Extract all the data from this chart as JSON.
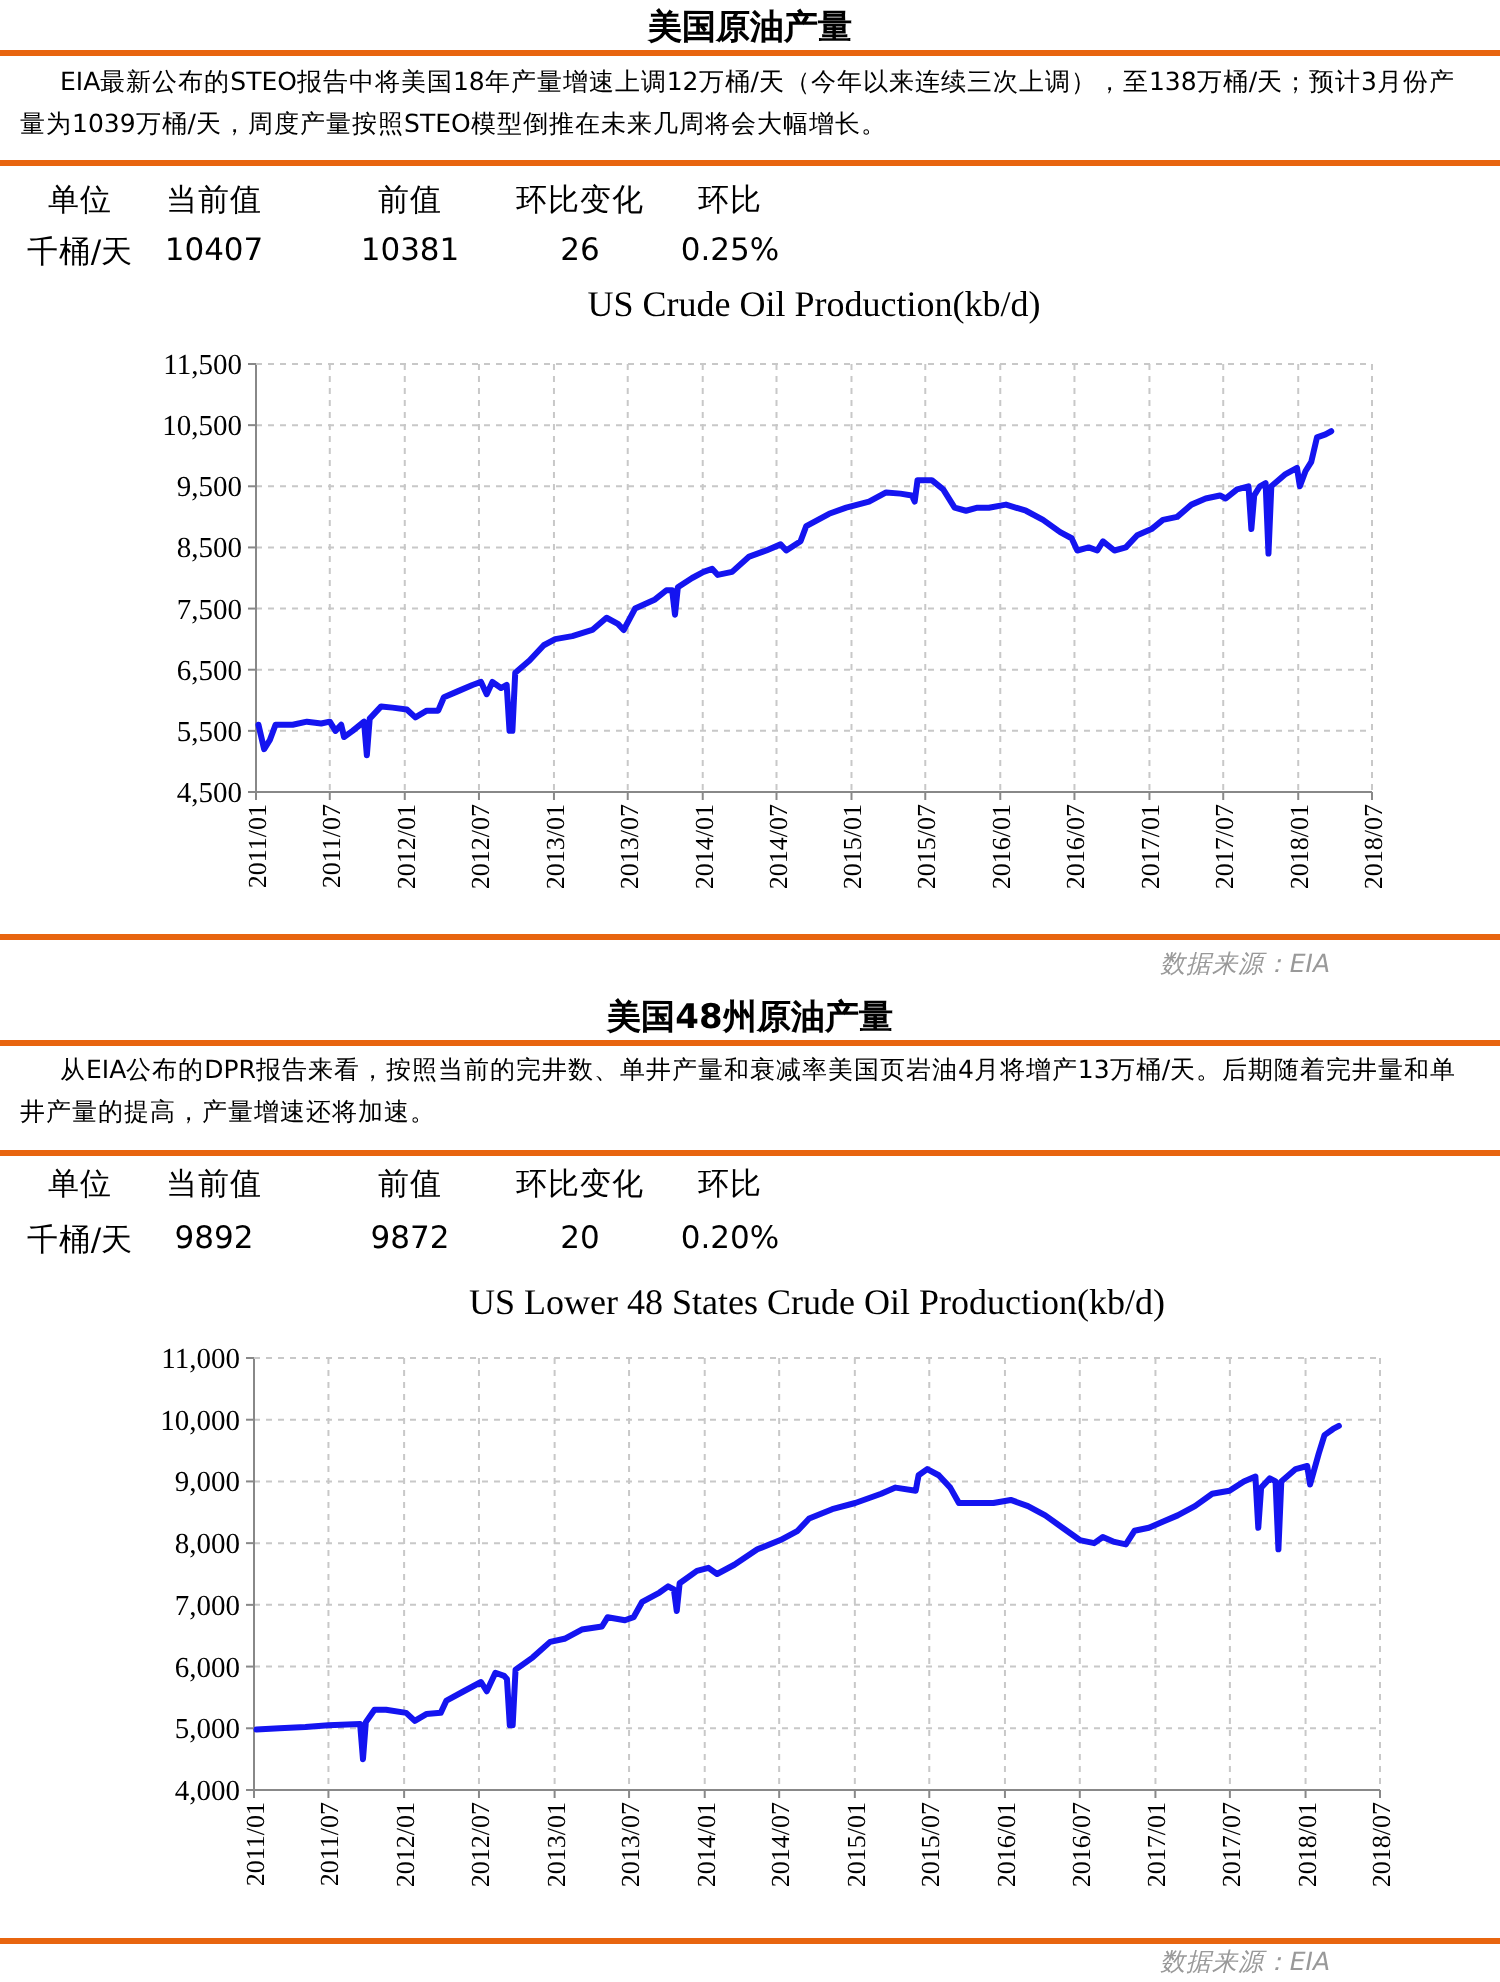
{
  "chart_data": [
    {
      "type": "line",
      "title": "US Crude Oil Production(kb/d)",
      "annotations": [
        "美国原油产量",
        "EIA最新公布的STEO报告中将美国18年产量增速上调12万桶/天（今年以来连续三次上调），至138万桶/天；预计3月份产量为1039万桶/天，周度产量按照STEO模型倒推在未来几周将会大幅增长。",
        "单位",
        "当前值",
        "前值",
        "环比变化",
        "环比",
        "千桶/天",
        "10407",
        "10381",
        "26",
        "0.25%",
        "数据来源：EIA"
      ],
      "x": [
        "2011-01-07",
        "2011-01-21",
        "2011-02-04",
        "2011-02-18",
        "2011-04-01",
        "2011-05-06",
        "2011-06-10",
        "2011-07-01",
        "2011-07-15",
        "2011-07-29",
        "2011-08-05",
        "2011-08-26",
        "2011-09-23",
        "2011-09-30",
        "2011-10-07",
        "2011-11-04",
        "2011-12-02",
        "2012-01-06",
        "2012-01-27",
        "2012-02-24",
        "2012-03-23",
        "2012-04-06",
        "2012-05-11",
        "2012-06-15",
        "2012-07-06",
        "2012-07-20",
        "2012-08-03",
        "2012-08-24",
        "2012-09-07",
        "2012-09-14",
        "2012-09-21",
        "2012-09-28",
        "2012-11-02",
        "2012-12-07",
        "2013-01-04",
        "2013-02-15",
        "2013-04-05",
        "2013-05-10",
        "2013-06-07",
        "2013-06-21",
        "2013-07-19",
        "2013-09-06",
        "2013-10-04",
        "2013-10-18",
        "2013-10-25",
        "2013-11-01",
        "2013-12-06",
        "2014-01-03",
        "2014-01-24",
        "2014-02-07",
        "2014-03-14",
        "2014-04-25",
        "2014-06-06",
        "2014-07-11",
        "2014-07-25",
        "2014-08-29",
        "2014-09-12",
        "2014-11-07",
        "2014-12-19",
        "2015-02-13",
        "2015-03-27",
        "2015-05-01",
        "2015-05-29",
        "2015-06-05",
        "2015-06-12",
        "2015-07-17",
        "2015-08-14",
        "2015-09-11",
        "2015-10-09",
        "2015-11-06",
        "2015-12-04",
        "2016-01-15",
        "2016-03-04",
        "2016-04-15",
        "2016-05-27",
        "2016-06-24",
        "2016-07-08",
        "2016-08-05",
        "2016-08-26",
        "2016-09-09",
        "2016-10-07",
        "2016-11-04",
        "2016-12-02",
        "2017-01-06",
        "2017-02-03",
        "2017-03-10",
        "2017-04-14",
        "2017-05-19",
        "2017-06-23",
        "2017-07-07",
        "2017-08-04",
        "2017-09-01",
        "2017-09-08",
        "2017-09-15",
        "2017-09-29",
        "2017-10-13",
        "2017-10-20",
        "2017-10-27",
        "2017-12-01",
        "2017-12-29",
        "2018-01-05",
        "2018-01-19",
        "2018-02-02",
        "2018-02-16",
        "2018-03-09",
        "2018-03-23"
      ],
      "series": [
        {
          "color": "#1414f0",
          "values": [
            5600,
            5200,
            5350,
            5600,
            5600,
            5650,
            5620,
            5650,
            5500,
            5600,
            5400,
            5500,
            5650,
            5100,
            5700,
            5900,
            5880,
            5850,
            5720,
            5830,
            5830,
            6050,
            6150,
            6250,
            6300,
            6100,
            6300,
            6200,
            6250,
            5500,
            5500,
            6450,
            6650,
            6900,
            7000,
            7050,
            7150,
            7350,
            7250,
            7150,
            7500,
            7650,
            7800,
            7800,
            7400,
            7850,
            8000,
            8100,
            8150,
            8050,
            8100,
            8350,
            8450,
            8550,
            8450,
            8600,
            8850,
            9050,
            9150,
            9250,
            9400,
            9380,
            9350,
            9250,
            9600,
            9600,
            9450,
            9150,
            9100,
            9150,
            9150,
            9200,
            9100,
            8950,
            8750,
            8650,
            8450,
            8500,
            8450,
            8600,
            8450,
            8500,
            8700,
            8800,
            8950,
            9000,
            9200,
            9300,
            9350,
            9300,
            9450,
            9500,
            8800,
            9350,
            9500,
            9550,
            8400,
            9500,
            9700,
            9800,
            9500,
            9750,
            9900,
            10300,
            10350,
            10400
          ]
        }
      ],
      "xlim": [
        "2011-01-01",
        "2018-07-01"
      ],
      "xticks": [
        {
          "value": "2011-01-01",
          "label": "2011/01"
        },
        {
          "value": "2011-07-01",
          "label": "2011/07"
        },
        {
          "value": "2012-01-01",
          "label": "2012/01"
        },
        {
          "value": "2012-07-01",
          "label": "2012/07"
        },
        {
          "value": "2013-01-01",
          "label": "2013/01"
        },
        {
          "value": "2013-07-01",
          "label": "2013/07"
        },
        {
          "value": "2014-01-01",
          "label": "2014/01"
        },
        {
          "value": "2014-07-01",
          "label": "2014/07"
        },
        {
          "value": "2015-01-01",
          "label": "2015/01"
        },
        {
          "value": "2015-07-01",
          "label": "2015/07"
        },
        {
          "value": "2016-01-01",
          "label": "2016/01"
        },
        {
          "value": "2016-07-01",
          "label": "2016/07"
        },
        {
          "value": "2017-01-01",
          "label": "2017/01"
        },
        {
          "value": "2017-07-01",
          "label": "2017/07"
        },
        {
          "value": "2018-01-01",
          "label": "2018/01"
        },
        {
          "value": "2018-07-01",
          "label": "2018/07"
        }
      ],
      "ylim": [
        4500,
        11500
      ],
      "yticks": [
        {
          "value": 4500,
          "label": "4,500"
        },
        {
          "value": 5500,
          "label": "5,500"
        },
        {
          "value": 6500,
          "label": "6,500"
        },
        {
          "value": 7500,
          "label": "7,500"
        },
        {
          "value": 8500,
          "label": "8,500"
        },
        {
          "value": 9500,
          "label": "9,500"
        },
        {
          "value": 10500,
          "label": "10,500"
        },
        {
          "value": 11500,
          "label": "11,500"
        }
      ],
      "grid": true
    },
    {
      "type": "line",
      "title": "US Lower 48 States Crude Oil Production(kb/d)",
      "annotations": [
        "美国48州原油产量",
        "从EIA公布的DPR报告来看，按照当前的完井数、单井产量和衰减率美国页岩油4月将增产13万桶/天。后期随着完井量和单井产量的提高，产量增速还将加速。",
        "单位",
        "当前值",
        "前值",
        "环比变化",
        "环比",
        "千桶/天",
        "9892",
        "9872",
        "20",
        "0.20%",
        "数据来源：EIA"
      ],
      "x": [
        "2011-01-07",
        "2011-03-04",
        "2011-05-06",
        "2011-07-01",
        "2011-09-16",
        "2011-09-23",
        "2011-09-30",
        "2011-10-21",
        "2011-11-18",
        "2012-01-06",
        "2012-01-27",
        "2012-02-24",
        "2012-03-30",
        "2012-04-13",
        "2012-05-25",
        "2012-07-06",
        "2012-07-20",
        "2012-08-10",
        "2012-08-31",
        "2012-09-07",
        "2012-09-14",
        "2012-09-21",
        "2012-09-28",
        "2012-11-09",
        "2012-12-21",
        "2013-01-25",
        "2013-03-08",
        "2013-04-26",
        "2013-05-10",
        "2013-06-21",
        "2013-07-12",
        "2013-08-02",
        "2013-09-13",
        "2013-10-04",
        "2013-10-18",
        "2013-10-25",
        "2013-11-01",
        "2013-12-13",
        "2014-01-10",
        "2014-01-31",
        "2014-03-14",
        "2014-05-09",
        "2014-07-04",
        "2014-08-15",
        "2014-09-12",
        "2014-11-07",
        "2015-01-02",
        "2015-03-06",
        "2015-04-10",
        "2015-05-29",
        "2015-06-05",
        "2015-06-26",
        "2015-07-24",
        "2015-08-21",
        "2015-09-11",
        "2015-10-09",
        "2015-12-04",
        "2016-01-15",
        "2016-02-26",
        "2016-04-08",
        "2016-05-20",
        "2016-07-01",
        "2016-08-05",
        "2016-08-26",
        "2016-09-23",
        "2016-10-21",
        "2016-11-11",
        "2016-12-16",
        "2017-01-20",
        "2017-02-24",
        "2017-04-07",
        "2017-05-19",
        "2017-06-30",
        "2017-08-04",
        "2017-09-01",
        "2017-09-08",
        "2017-09-15",
        "2017-10-06",
        "2017-10-20",
        "2017-10-27",
        "2017-11-03",
        "2017-12-08",
        "2018-01-05",
        "2018-01-12",
        "2018-02-02",
        "2018-02-16",
        "2018-03-09",
        "2018-03-23"
      ],
      "series": [
        {
          "color": "#1414f0",
          "values": [
            4980,
            5000,
            5020,
            5050,
            5070,
            4500,
            5100,
            5300,
            5300,
            5250,
            5120,
            5230,
            5250,
            5450,
            5600,
            5750,
            5600,
            5900,
            5850,
            5800,
            5050,
            5050,
            5950,
            6150,
            6400,
            6450,
            6600,
            6650,
            6800,
            6750,
            6800,
            7050,
            7200,
            7300,
            7250,
            6900,
            7350,
            7550,
            7600,
            7500,
            7650,
            7900,
            8050,
            8200,
            8400,
            8550,
            8650,
            8800,
            8900,
            8850,
            9100,
            9200,
            9100,
            8900,
            8650,
            8650,
            8650,
            8700,
            8600,
            8450,
            8250,
            8050,
            8000,
            8100,
            8020,
            7980,
            8200,
            8250,
            8350,
            8450,
            8600,
            8800,
            8850,
            9000,
            9080,
            8250,
            8900,
            9050,
            9000,
            7900,
            9000,
            9200,
            9250,
            8950,
            9450,
            9750,
            9850,
            9900
          ]
        }
      ],
      "xlim": [
        "2011-01-01",
        "2018-07-01"
      ],
      "xticks": [
        {
          "value": "2011-01-01",
          "label": "2011/01"
        },
        {
          "value": "2011-07-01",
          "label": "2011/07"
        },
        {
          "value": "2012-01-01",
          "label": "2012/01"
        },
        {
          "value": "2012-07-01",
          "label": "2012/07"
        },
        {
          "value": "2013-01-01",
          "label": "2013/01"
        },
        {
          "value": "2013-07-01",
          "label": "2013/07"
        },
        {
          "value": "2014-01-01",
          "label": "2014/01"
        },
        {
          "value": "2014-07-01",
          "label": "2014/07"
        },
        {
          "value": "2015-01-01",
          "label": "2015/01"
        },
        {
          "value": "2015-07-01",
          "label": "2015/07"
        },
        {
          "value": "2016-01-01",
          "label": "2016/01"
        },
        {
          "value": "2016-07-01",
          "label": "2016/07"
        },
        {
          "value": "2017-01-01",
          "label": "2017/01"
        },
        {
          "value": "2017-07-01",
          "label": "2017/07"
        },
        {
          "value": "2018-01-01",
          "label": "2018/01"
        },
        {
          "value": "2018-07-01",
          "label": "2018/07"
        }
      ],
      "ylim": [
        4000,
        11000
      ],
      "yticks": [
        {
          "value": 4000,
          "label": "4,000"
        },
        {
          "value": 5000,
          "label": "5,000"
        },
        {
          "value": 6000,
          "label": "6,000"
        },
        {
          "value": 7000,
          "label": "7,000"
        },
        {
          "value": 8000,
          "label": "8,000"
        },
        {
          "value": 9000,
          "label": "9,000"
        },
        {
          "value": 10000,
          "label": "10,000"
        },
        {
          "value": 11000,
          "label": "11,000"
        }
      ],
      "grid": true
    }
  ]
}
